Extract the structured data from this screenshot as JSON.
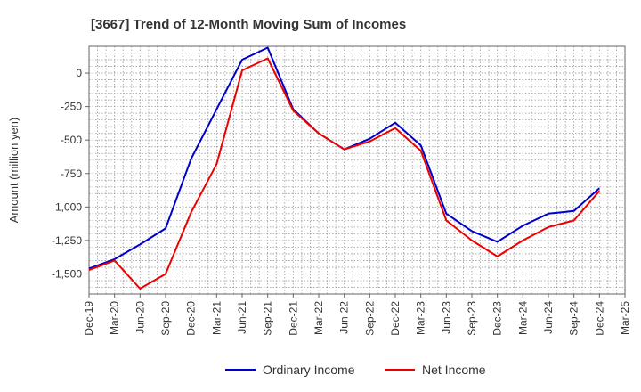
{
  "chart_data": {
    "type": "line",
    "title": "[3667]  Trend of 12-Month Moving Sum of Incomes",
    "xlabel": "",
    "ylabel": "Amount (million yen)",
    "ylim": [
      -1650,
      200
    ],
    "yticks": [
      0,
      -250,
      -500,
      -750,
      -1000,
      -1250,
      -1500
    ],
    "ytick_labels": [
      "0",
      "-250",
      "-500",
      "-750",
      "-1,000",
      "-1,250",
      "-1,500"
    ],
    "categories": [
      "Dec-19",
      "Mar-20",
      "Jun-20",
      "Sep-20",
      "Dec-20",
      "Mar-21",
      "Jun-21",
      "Sep-21",
      "Dec-21",
      "Mar-22",
      "Jun-22",
      "Sep-22",
      "Dec-22",
      "Mar-23",
      "Jun-23",
      "Sep-23",
      "Dec-23",
      "Mar-24",
      "Jun-24",
      "Sep-24",
      "Dec-24",
      "Mar-25"
    ],
    "grid": true,
    "legend_position": "bottom-center",
    "series": [
      {
        "name": "Ordinary Income",
        "color": "#0000cc",
        "values": [
          -1460,
          -1390,
          -1280,
          -1160,
          -640,
          -270,
          100,
          190,
          -270,
          -450,
          -570,
          -490,
          -370,
          -540,
          -1050,
          -1180,
          -1260,
          -1140,
          -1050,
          -1030,
          -860,
          null
        ]
      },
      {
        "name": "Net Income",
        "color": "#ee0000",
        "values": [
          -1470,
          -1400,
          -1610,
          -1500,
          -1040,
          -680,
          20,
          110,
          -280,
          -450,
          -570,
          -510,
          -410,
          -580,
          -1100,
          -1250,
          -1370,
          -1250,
          -1150,
          -1100,
          -880,
          null
        ]
      }
    ]
  }
}
